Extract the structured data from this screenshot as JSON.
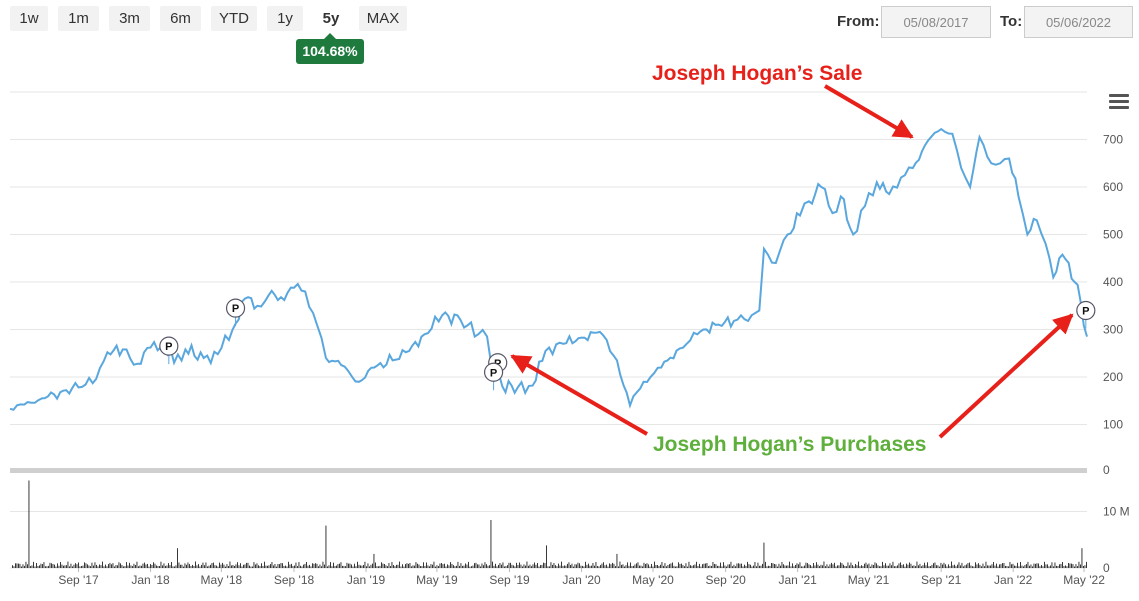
{
  "range_buttons": [
    "1w",
    "1m",
    "3m",
    "6m",
    "YTD",
    "1y",
    "5y",
    "MAX"
  ],
  "active_range": "5y",
  "performance_badge": "104.68%",
  "date_range": {
    "from_label": "From:",
    "from_value": "05/08/2017",
    "to_label": "To:",
    "to_value": "05/06/2022"
  },
  "colors": {
    "price_line": "#5aa7de",
    "volume_bars": "#222222",
    "sale_annotation": "#e8201a",
    "purchase_annotation": "#5faf3c",
    "badge": "#1f7a3d"
  },
  "icons": [
    "menu-icon"
  ],
  "chart_data": {
    "type": "line",
    "x_ticks": [
      "Sep '17",
      "Jan '18",
      "May '18",
      "Sep '18",
      "Jan '19",
      "May '19",
      "Sep '19",
      "Jan '20",
      "May '20",
      "Sep '20",
      "Jan '21",
      "May '21",
      "Sep '21",
      "Jan '22",
      "May '22"
    ],
    "y_ticks": [
      "0",
      "100",
      "200",
      "300",
      "400",
      "500",
      "600",
      "700"
    ],
    "ylim": [
      0,
      800
    ],
    "volume_ticks": [
      "0",
      "10 M"
    ],
    "volume_ylim": [
      0,
      17
    ],
    "x_range": [
      "2017-05-08",
      "2022-05-06"
    ],
    "series": [
      {
        "values": [
          [
            "2017-05-08",
            133
          ],
          [
            "2017-06-01",
            142
          ],
          [
            "2017-07-01",
            155
          ],
          [
            "2017-08-01",
            168
          ],
          [
            "2017-09-01",
            178
          ],
          [
            "2017-10-01",
            196
          ],
          [
            "2017-10-20",
            252
          ],
          [
            "2017-11-15",
            258
          ],
          [
            "2017-12-10",
            228
          ],
          [
            "2018-01-01",
            262
          ],
          [
            "2018-01-25",
            270
          ],
          [
            "2018-02-10",
            230
          ],
          [
            "2018-03-01",
            258
          ],
          [
            "2018-04-01",
            240
          ],
          [
            "2018-04-25",
            248
          ],
          [
            "2018-05-20",
            300
          ],
          [
            "2018-06-10",
            365
          ],
          [
            "2018-07-01",
            350
          ],
          [
            "2018-07-20",
            372
          ],
          [
            "2018-08-10",
            368
          ],
          [
            "2018-09-01",
            388
          ],
          [
            "2018-09-20",
            380
          ],
          [
            "2018-10-10",
            310
          ],
          [
            "2018-10-25",
            240
          ],
          [
            "2018-11-20",
            225
          ],
          [
            "2018-12-20",
            190
          ],
          [
            "2019-01-15",
            220
          ],
          [
            "2019-02-15",
            235
          ],
          [
            "2019-03-15",
            255
          ],
          [
            "2019-04-10",
            290
          ],
          [
            "2019-05-10",
            330
          ],
          [
            "2019-06-10",
            320
          ],
          [
            "2019-07-10",
            290
          ],
          [
            "2019-07-25",
            285
          ],
          [
            "2019-08-05",
            220
          ],
          [
            "2019-08-20",
            180
          ],
          [
            "2019-09-15",
            178
          ],
          [
            "2019-10-10",
            182
          ],
          [
            "2019-11-01",
            255
          ],
          [
            "2019-12-01",
            270
          ],
          [
            "2020-01-01",
            283
          ],
          [
            "2020-02-01",
            295
          ],
          [
            "2020-03-01",
            235
          ],
          [
            "2020-03-23",
            140
          ],
          [
            "2020-04-15",
            190
          ],
          [
            "2020-05-15",
            220
          ],
          [
            "2020-06-15",
            260
          ],
          [
            "2020-07-15",
            290
          ],
          [
            "2020-08-15",
            310
          ],
          [
            "2020-09-15",
            318
          ],
          [
            "2020-10-15",
            330
          ],
          [
            "2020-10-28",
            340
          ],
          [
            "2020-11-05",
            470
          ],
          [
            "2020-11-25",
            440
          ],
          [
            "2020-12-15",
            500
          ],
          [
            "2021-01-05",
            540
          ],
          [
            "2021-01-20",
            570
          ],
          [
            "2021-02-10",
            600
          ],
          [
            "2021-03-01",
            545
          ],
          [
            "2021-03-15",
            580
          ],
          [
            "2021-04-05",
            500
          ],
          [
            "2021-04-25",
            560
          ],
          [
            "2021-05-15",
            610
          ],
          [
            "2021-06-05",
            585
          ],
          [
            "2021-06-25",
            620
          ],
          [
            "2021-07-15",
            640
          ],
          [
            "2021-08-10",
            698
          ],
          [
            "2021-09-01",
            722
          ],
          [
            "2021-09-20",
            712
          ],
          [
            "2021-10-05",
            640
          ],
          [
            "2021-10-20",
            600
          ],
          [
            "2021-11-05",
            705
          ],
          [
            "2021-11-25",
            650
          ],
          [
            "2021-12-10",
            650
          ],
          [
            "2021-12-25",
            660
          ],
          [
            "2022-01-10",
            580
          ],
          [
            "2022-01-25",
            500
          ],
          [
            "2022-02-10",
            530
          ],
          [
            "2022-02-25",
            480
          ],
          [
            "2022-03-10",
            410
          ],
          [
            "2022-03-20",
            450
          ],
          [
            "2022-04-05",
            440
          ],
          [
            "2022-04-15",
            400
          ],
          [
            "2022-04-25",
            360
          ],
          [
            "2022-05-06",
            285
          ]
        ]
      }
    ],
    "markers": [
      {
        "date": "2018-02-01",
        "value": 265,
        "label": "P"
      },
      {
        "date": "2018-05-25",
        "value": 345,
        "label": "P"
      },
      {
        "date": "2019-08-12",
        "value": 230,
        "label": "P"
      },
      {
        "date": "2019-08-05",
        "value": 210,
        "label": "P"
      },
      {
        "date": "2022-05-04",
        "value": 340,
        "label": "P"
      }
    ],
    "volume_spikes": [
      {
        "date": "2017-06-10",
        "value": 15.5
      },
      {
        "date": "2018-02-15",
        "value": 3.5
      },
      {
        "date": "2018-10-25",
        "value": 7.5
      },
      {
        "date": "2019-01-15",
        "value": 2.5
      },
      {
        "date": "2019-05-15",
        "value": 3
      },
      {
        "date": "2019-08-01",
        "value": 8.5
      },
      {
        "date": "2019-11-01",
        "value": 4
      },
      {
        "date": "2020-03-01",
        "value": 2.5
      },
      {
        "date": "2020-11-05",
        "value": 4.5
      },
      {
        "date": "2022-04-28",
        "value": 3.5
      }
    ],
    "annotations": [
      {
        "text": "Joseph Hogan’s Sale",
        "color": "#e8201a"
      },
      {
        "text": "Joseph Hogan’s Purchases",
        "color": "#5faf3c"
      }
    ],
    "grid": true
  }
}
